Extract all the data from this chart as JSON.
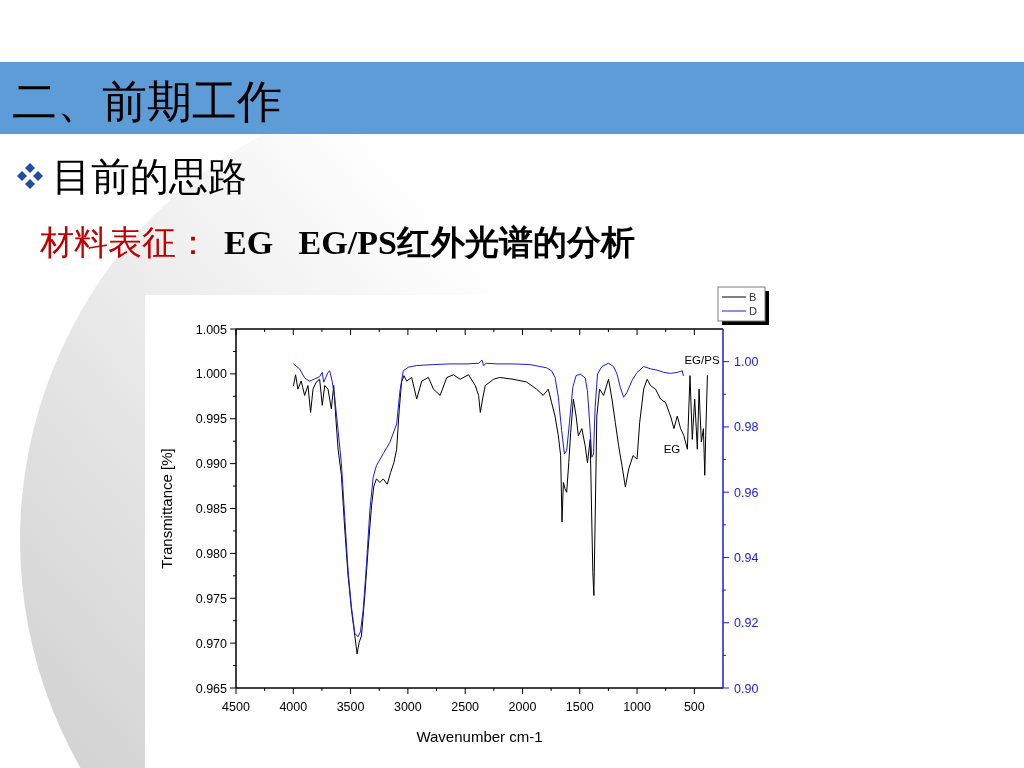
{
  "chart_data": {
    "type": "line",
    "title": "二、前期工作",
    "subtitle": "目前的思路",
    "xlabel": "Wavenumber cm-1",
    "ylabel": "Transmittance [%]",
    "annotations": [
      "材料表征：",
      "EG   EG/PS红外光谱的分析",
      "EG/PS",
      "EG"
    ],
    "xlim": [
      4500,
      250
    ],
    "xticks": [
      4500,
      {
        "value": 4250,
        "label": null
      },
      4000,
      {
        "value": 3750,
        "label": null
      },
      3500,
      {
        "value": 3250,
        "label": null
      },
      3000,
      {
        "value": 2750,
        "label": null
      },
      2500,
      {
        "value": 2250,
        "label": null
      },
      2000,
      {
        "value": 1750,
        "label": null
      },
      1500,
      {
        "value": 1250,
        "label": null
      },
      1000,
      {
        "value": 750,
        "label": null
      },
      500
    ],
    "ylim": [
      0.965,
      1.005
    ],
    "yticks": [
      0.965,
      {
        "value": 0.9675,
        "label": null
      },
      {
        "value": 0.97,
        "label": "0.970"
      },
      {
        "value": 0.9725,
        "label": null
      },
      0.975,
      {
        "value": 0.9775,
        "label": null
      },
      {
        "value": 0.98,
        "label": "0.980"
      },
      {
        "value": 0.9825,
        "label": null
      },
      0.985,
      {
        "value": 0.9875,
        "label": null
      },
      {
        "value": 0.99,
        "label": "0.990"
      },
      {
        "value": 0.9925,
        "label": null
      },
      0.995,
      {
        "value": 0.9975,
        "label": null
      },
      {
        "value": 1.0,
        "label": "1.000"
      },
      {
        "value": 1.0025,
        "label": null
      },
      1.005
    ],
    "y2lim": [
      0.9,
      1.01
    ],
    "y2ticks": [
      {
        "value": 0.9,
        "label": "0.90"
      },
      {
        "value": 0.91,
        "label": null
      },
      0.92,
      {
        "value": 0.93,
        "label": null
      },
      0.94,
      {
        "value": 0.95,
        "label": null
      },
      0.96,
      {
        "value": 0.97,
        "label": null
      },
      0.98,
      {
        "value": 0.99,
        "label": null
      },
      {
        "value": 1.0,
        "label": "1.00"
      }
    ],
    "legend": "top right",
    "series": [
      {
        "name": "B",
        "color": "#000000",
        "x": [
          3998,
          3980,
          3960,
          3931,
          3901,
          3872,
          3849,
          3828,
          3799,
          3770,
          3747,
          3726,
          3697,
          3668,
          3647,
          3630,
          3609,
          3580,
          3551,
          3522,
          3493,
          3463,
          3443,
          3425,
          3405,
          3376,
          3347,
          3317,
          3297,
          3274,
          3244,
          3215,
          3180,
          3151,
          3122,
          3098,
          3075,
          3055,
          3034,
          3011,
          2967,
          2923,
          2879,
          2821,
          2777,
          2719,
          2660,
          2602,
          2544,
          2471,
          2412,
          2383,
          2368,
          2348,
          2325,
          2252,
          2199,
          2082,
          1965,
          1877,
          1819,
          1775,
          1746,
          1716,
          1687,
          1667,
          1655,
          1643,
          1629,
          1614,
          1596,
          1579,
          1556,
          1532,
          1512,
          1482,
          1453,
          1433,
          1409,
          1395,
          1386,
          1377,
          1366,
          1351,
          1327,
          1292,
          1249,
          1219,
          1190,
          1161,
          1132,
          1102,
          1073,
          1035,
          1000,
          977,
          942,
          912,
          883,
          839,
          795,
          751,
          708,
          678,
          649,
          620,
          591,
          561,
          538,
          518,
          497,
          474,
          459,
          439,
          421,
          409,
          401,
          386
        ],
        "values": [
          0.9987,
          0.9999,
          0.9983,
          0.9992,
          0.9976,
          0.9987,
          0.9957,
          0.9983,
          0.9991,
          0.9994,
          0.9965,
          0.9987,
          0.9983,
          0.9961,
          0.9987,
          0.9953,
          0.9916,
          0.9887,
          0.9827,
          0.9775,
          0.9738,
          0.9708,
          0.9688,
          0.9701,
          0.9708,
          0.9753,
          0.9805,
          0.9853,
          0.9875,
          0.9883,
          0.9879,
          0.9883,
          0.9877,
          0.989,
          0.9901,
          0.9916,
          0.9961,
          0.9991,
          0.9998,
          0.9992,
          0.9996,
          0.9972,
          0.9992,
          0.9996,
          0.9983,
          0.9976,
          0.9996,
          0.9999,
          0.9994,
          0.9999,
          0.9987,
          0.9976,
          0.9957,
          0.9972,
          0.9987,
          0.9994,
          0.9996,
          0.9994,
          0.9991,
          0.9983,
          0.9976,
          0.9983,
          0.9968,
          0.9953,
          0.9931,
          0.9909,
          0.9835,
          0.9879,
          0.9872,
          0.9868,
          0.9901,
          0.9935,
          0.9972,
          0.9953,
          0.9931,
          0.9939,
          0.992,
          0.9901,
          0.9927,
          0.9835,
          0.9779,
          0.9753,
          0.9835,
          0.9953,
          0.9983,
          0.9976,
          0.9994,
          0.9972,
          0.9946,
          0.992,
          0.9898,
          0.9874,
          0.9894,
          0.9909,
          0.9905,
          0.9946,
          0.9983,
          0.9994,
          0.9987,
          0.9983,
          0.9972,
          0.9968,
          0.9953,
          0.9939,
          0.9953,
          0.9939,
          0.9931,
          0.9916,
          0.9998,
          0.9927,
          0.9972,
          0.9916,
          0.9983,
          0.9924,
          0.9939,
          0.9887,
          0.9931,
          0.9998
        ]
      },
      {
        "name": "D",
        "color": "#1a1ae8",
        "axis": "y2",
        "x": [
          3998,
          3945,
          3901,
          3858,
          3814,
          3770,
          3747,
          3735,
          3697,
          3682,
          3659,
          3639,
          3609,
          3580,
          3551,
          3522,
          3493,
          3463,
          3434,
          3414,
          3390,
          3361,
          3332,
          3303,
          3274,
          3215,
          3157,
          3098,
          3069,
          3040,
          2996,
          2923,
          2777,
          2631,
          2485,
          2383,
          2354,
          2339,
          2316,
          2222,
          2082,
          1936,
          1848,
          1789,
          1746,
          1716,
          1687,
          1658,
          1634,
          1614,
          1591,
          1561,
          1532,
          1497,
          1453,
          1433,
          1409,
          1395,
          1380,
          1366,
          1345,
          1307,
          1249,
          1205,
          1175,
          1146,
          1117,
          1088,
          1044,
          1000,
          942,
          883,
          825,
          766,
          708,
          649,
          605,
          596
        ],
        "values": [
          0.9993,
          0.9978,
          0.995,
          0.994,
          0.9947,
          0.9954,
          0.9967,
          0.9937,
          0.9967,
          0.9972,
          0.9937,
          0.9891,
          0.9789,
          0.9687,
          0.9524,
          0.9361,
          0.9249,
          0.9167,
          0.9157,
          0.9172,
          0.9239,
          0.9381,
          0.9544,
          0.9646,
          0.9682,
          0.9718,
          0.9753,
          0.9809,
          0.9911,
          0.9972,
          0.9983,
          0.9988,
          0.9991,
          0.9993,
          0.9993,
          0.9995,
          1.0005,
          0.9988,
          0.9995,
          0.9993,
          0.9993,
          0.9991,
          0.9985,
          0.9981,
          0.9972,
          0.9952,
          0.9891,
          0.9789,
          0.9717,
          0.9728,
          0.9809,
          0.9921,
          0.9957,
          0.9962,
          0.995,
          0.9911,
          0.9789,
          0.9707,
          0.9717,
          0.986,
          0.9962,
          0.9985,
          0.9995,
          0.9985,
          0.9962,
          0.9921,
          0.9891,
          0.9906,
          0.9942,
          0.9967,
          0.9985,
          0.9978,
          0.9974,
          0.9967,
          0.9964,
          0.9967,
          0.9972,
          0.9957
        ]
      }
    ]
  }
}
